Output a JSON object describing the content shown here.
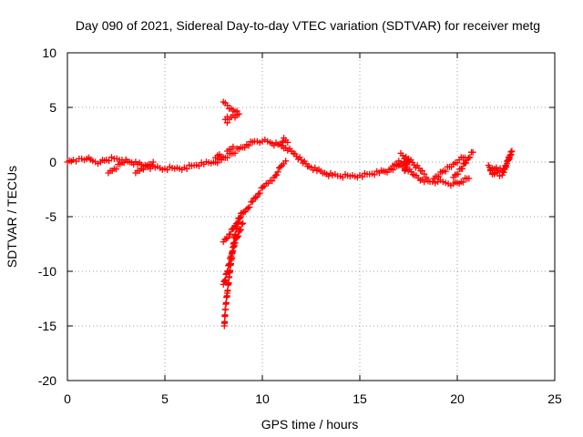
{
  "chart_data": {
    "type": "scatter",
    "title": "Day 090 of 2021, Sidereal Day-to-day VTEC variation (SDTVAR) for receiver metg",
    "xlabel": "GPS time / hours",
    "ylabel": "SDTVAR / TECUs",
    "xlim": [
      0,
      25
    ],
    "ylim": [
      -20,
      10
    ],
    "xticks": [
      0,
      5,
      10,
      15,
      20,
      25
    ],
    "yticks": [
      -20,
      -15,
      -10,
      -5,
      0,
      5,
      10
    ],
    "xtick_labels": [
      "0",
      "5",
      "10",
      "15",
      "20",
      "25"
    ],
    "ytick_labels": [
      "-20",
      "-15",
      "-10",
      "-5",
      "0",
      "5",
      "10"
    ],
    "grid": true,
    "marker": "+",
    "color": "#ff0000",
    "series": [
      {
        "name": "main-trace",
        "points": [
          [
            0.0,
            0.0
          ],
          [
            0.3,
            0.2
          ],
          [
            0.6,
            0.3
          ],
          [
            1.0,
            0.3
          ],
          [
            1.3,
            0.1
          ],
          [
            1.7,
            0.0
          ],
          [
            2.0,
            0.2
          ],
          [
            2.4,
            0.3
          ],
          [
            2.8,
            0.2
          ],
          [
            3.2,
            0.0
          ],
          [
            3.6,
            -0.2
          ],
          [
            4.0,
            -0.4
          ],
          [
            4.5,
            -0.5
          ],
          [
            5.0,
            -0.6
          ],
          [
            5.5,
            -0.6
          ],
          [
            6.0,
            -0.5
          ],
          [
            6.5,
            -0.3
          ],
          [
            7.0,
            -0.2
          ],
          [
            7.5,
            0.0
          ],
          [
            7.9,
            0.2
          ],
          [
            8.5,
            0.8
          ],
          [
            8.8,
            1.2
          ],
          [
            9.2,
            1.6
          ],
          [
            9.6,
            1.9
          ],
          [
            10.0,
            1.9
          ],
          [
            10.4,
            1.8
          ],
          [
            10.8,
            1.6
          ],
          [
            11.2,
            1.3
          ],
          [
            11.6,
            0.8
          ],
          [
            12.0,
            0.2
          ],
          [
            12.4,
            -0.4
          ],
          [
            12.8,
            -0.8
          ],
          [
            13.2,
            -1.0
          ],
          [
            13.6,
            -1.2
          ],
          [
            14.0,
            -1.3
          ],
          [
            14.5,
            -1.3
          ],
          [
            15.0,
            -1.2
          ],
          [
            15.5,
            -1.1
          ],
          [
            16.0,
            -1.0
          ],
          [
            16.5,
            -0.7
          ],
          [
            17.0,
            -0.3
          ],
          [
            17.4,
            -0.6
          ],
          [
            17.8,
            -1.2
          ],
          [
            18.2,
            -1.6
          ],
          [
            18.6,
            -1.8
          ],
          [
            19.0,
            -1.8
          ],
          [
            19.4,
            -1.9
          ],
          [
            19.8,
            -2.0
          ],
          [
            20.2,
            -1.8
          ],
          [
            20.6,
            -1.5
          ]
        ]
      },
      {
        "name": "dip-2h",
        "points": [
          [
            2.1,
            -1.0
          ],
          [
            2.4,
            -0.6
          ],
          [
            2.7,
            -0.2
          ],
          [
            3.0,
            0.2
          ]
        ]
      },
      {
        "name": "dip-3h",
        "points": [
          [
            3.5,
            -1.0
          ],
          [
            3.8,
            -0.6
          ],
          [
            4.1,
            -0.3
          ],
          [
            4.4,
            0.0
          ]
        ]
      },
      {
        "name": "late-rise-a",
        "points": [
          [
            18.8,
            -1.5
          ],
          [
            19.3,
            -0.8
          ],
          [
            19.8,
            -0.2
          ],
          [
            20.1,
            0.2
          ],
          [
            20.4,
            0.4
          ]
        ]
      },
      {
        "name": "late-rise-b",
        "points": [
          [
            19.8,
            -1.4
          ],
          [
            20.2,
            -0.6
          ],
          [
            20.5,
            0.2
          ],
          [
            20.8,
            0.9
          ]
        ]
      },
      {
        "name": "cluster-22h",
        "points": [
          [
            21.7,
            -0.7
          ],
          [
            22.0,
            -0.5
          ],
          [
            22.3,
            -0.8
          ],
          [
            22.5,
            -0.3
          ],
          [
            22.7,
            0.5
          ],
          [
            22.8,
            1.0
          ],
          [
            22.3,
            -1.2
          ],
          [
            21.8,
            -1.0
          ]
        ]
      },
      {
        "name": "blob-17h",
        "points": [
          [
            16.6,
            -0.6
          ],
          [
            16.8,
            -0.2
          ],
          [
            17.0,
            0.1
          ],
          [
            17.2,
            -0.3
          ],
          [
            17.5,
            0.3
          ],
          [
            17.3,
            -0.8
          ]
        ]
      },
      {
        "name": "ramp-up",
        "points": [
          [
            8.0,
            -7.3
          ],
          [
            8.3,
            -6.6
          ],
          [
            8.6,
            -5.8
          ],
          [
            8.9,
            -5.0
          ],
          [
            9.2,
            -4.3
          ],
          [
            9.5,
            -3.6
          ],
          [
            9.8,
            -2.9
          ],
          [
            10.1,
            -2.2
          ],
          [
            10.4,
            -1.7
          ],
          [
            10.6,
            -1.4
          ],
          [
            10.8,
            -0.9
          ],
          [
            11.0,
            -0.3
          ],
          [
            11.2,
            0.1
          ]
        ]
      },
      {
        "name": "ramp-lower",
        "points": [
          [
            8.05,
            -15.0
          ],
          [
            8.1,
            -13.5
          ],
          [
            8.2,
            -12.0
          ],
          [
            8.3,
            -10.5
          ],
          [
            8.4,
            -9.0
          ],
          [
            8.5,
            -7.8
          ],
          [
            8.6,
            -6.7
          ],
          [
            8.7,
            -5.9
          ],
          [
            8.8,
            -5.2
          ],
          [
            8.9,
            -4.7
          ]
        ]
      },
      {
        "name": "ramp-mid",
        "points": [
          [
            8.0,
            -11.2
          ],
          [
            8.2,
            -10.0
          ],
          [
            8.4,
            -8.6
          ],
          [
            8.6,
            -7.4
          ],
          [
            8.8,
            -6.4
          ],
          [
            9.0,
            -5.6
          ]
        ]
      },
      {
        "name": "spike-high",
        "points": [
          [
            8.0,
            5.5
          ],
          [
            8.2,
            5.2
          ],
          [
            8.4,
            4.9
          ],
          [
            8.6,
            4.6
          ],
          [
            8.8,
            4.4
          ],
          [
            8.1,
            3.9
          ],
          [
            8.2,
            3.6
          ]
        ]
      },
      {
        "name": "spike-low",
        "points": [
          [
            8.2,
            1.0
          ],
          [
            8.4,
            1.2
          ],
          [
            8.5,
            1.4
          ]
        ]
      },
      {
        "name": "bump-11h",
        "points": [
          [
            11.0,
            1.5
          ],
          [
            11.1,
            2.2
          ],
          [
            11.2,
            2.0
          ],
          [
            11.3,
            1.8
          ]
        ]
      },
      {
        "name": "bump-7_5h",
        "points": [
          [
            7.6,
            0.4
          ],
          [
            7.7,
            0.6
          ],
          [
            7.8,
            0.7
          ],
          [
            7.9,
            0.5
          ]
        ]
      },
      {
        "name": "spike-17h",
        "points": [
          [
            17.1,
            0.8
          ],
          [
            17.2,
            0.6
          ],
          [
            18.2,
            -0.8
          ],
          [
            18.3,
            -1.1
          ],
          [
            18.4,
            -1.4
          ]
        ]
      },
      {
        "name": "spike-21_5h",
        "points": [
          [
            21.6,
            -0.3
          ],
          [
            21.7,
            -0.8
          ],
          [
            21.9,
            -1.1
          ]
        ]
      }
    ]
  }
}
